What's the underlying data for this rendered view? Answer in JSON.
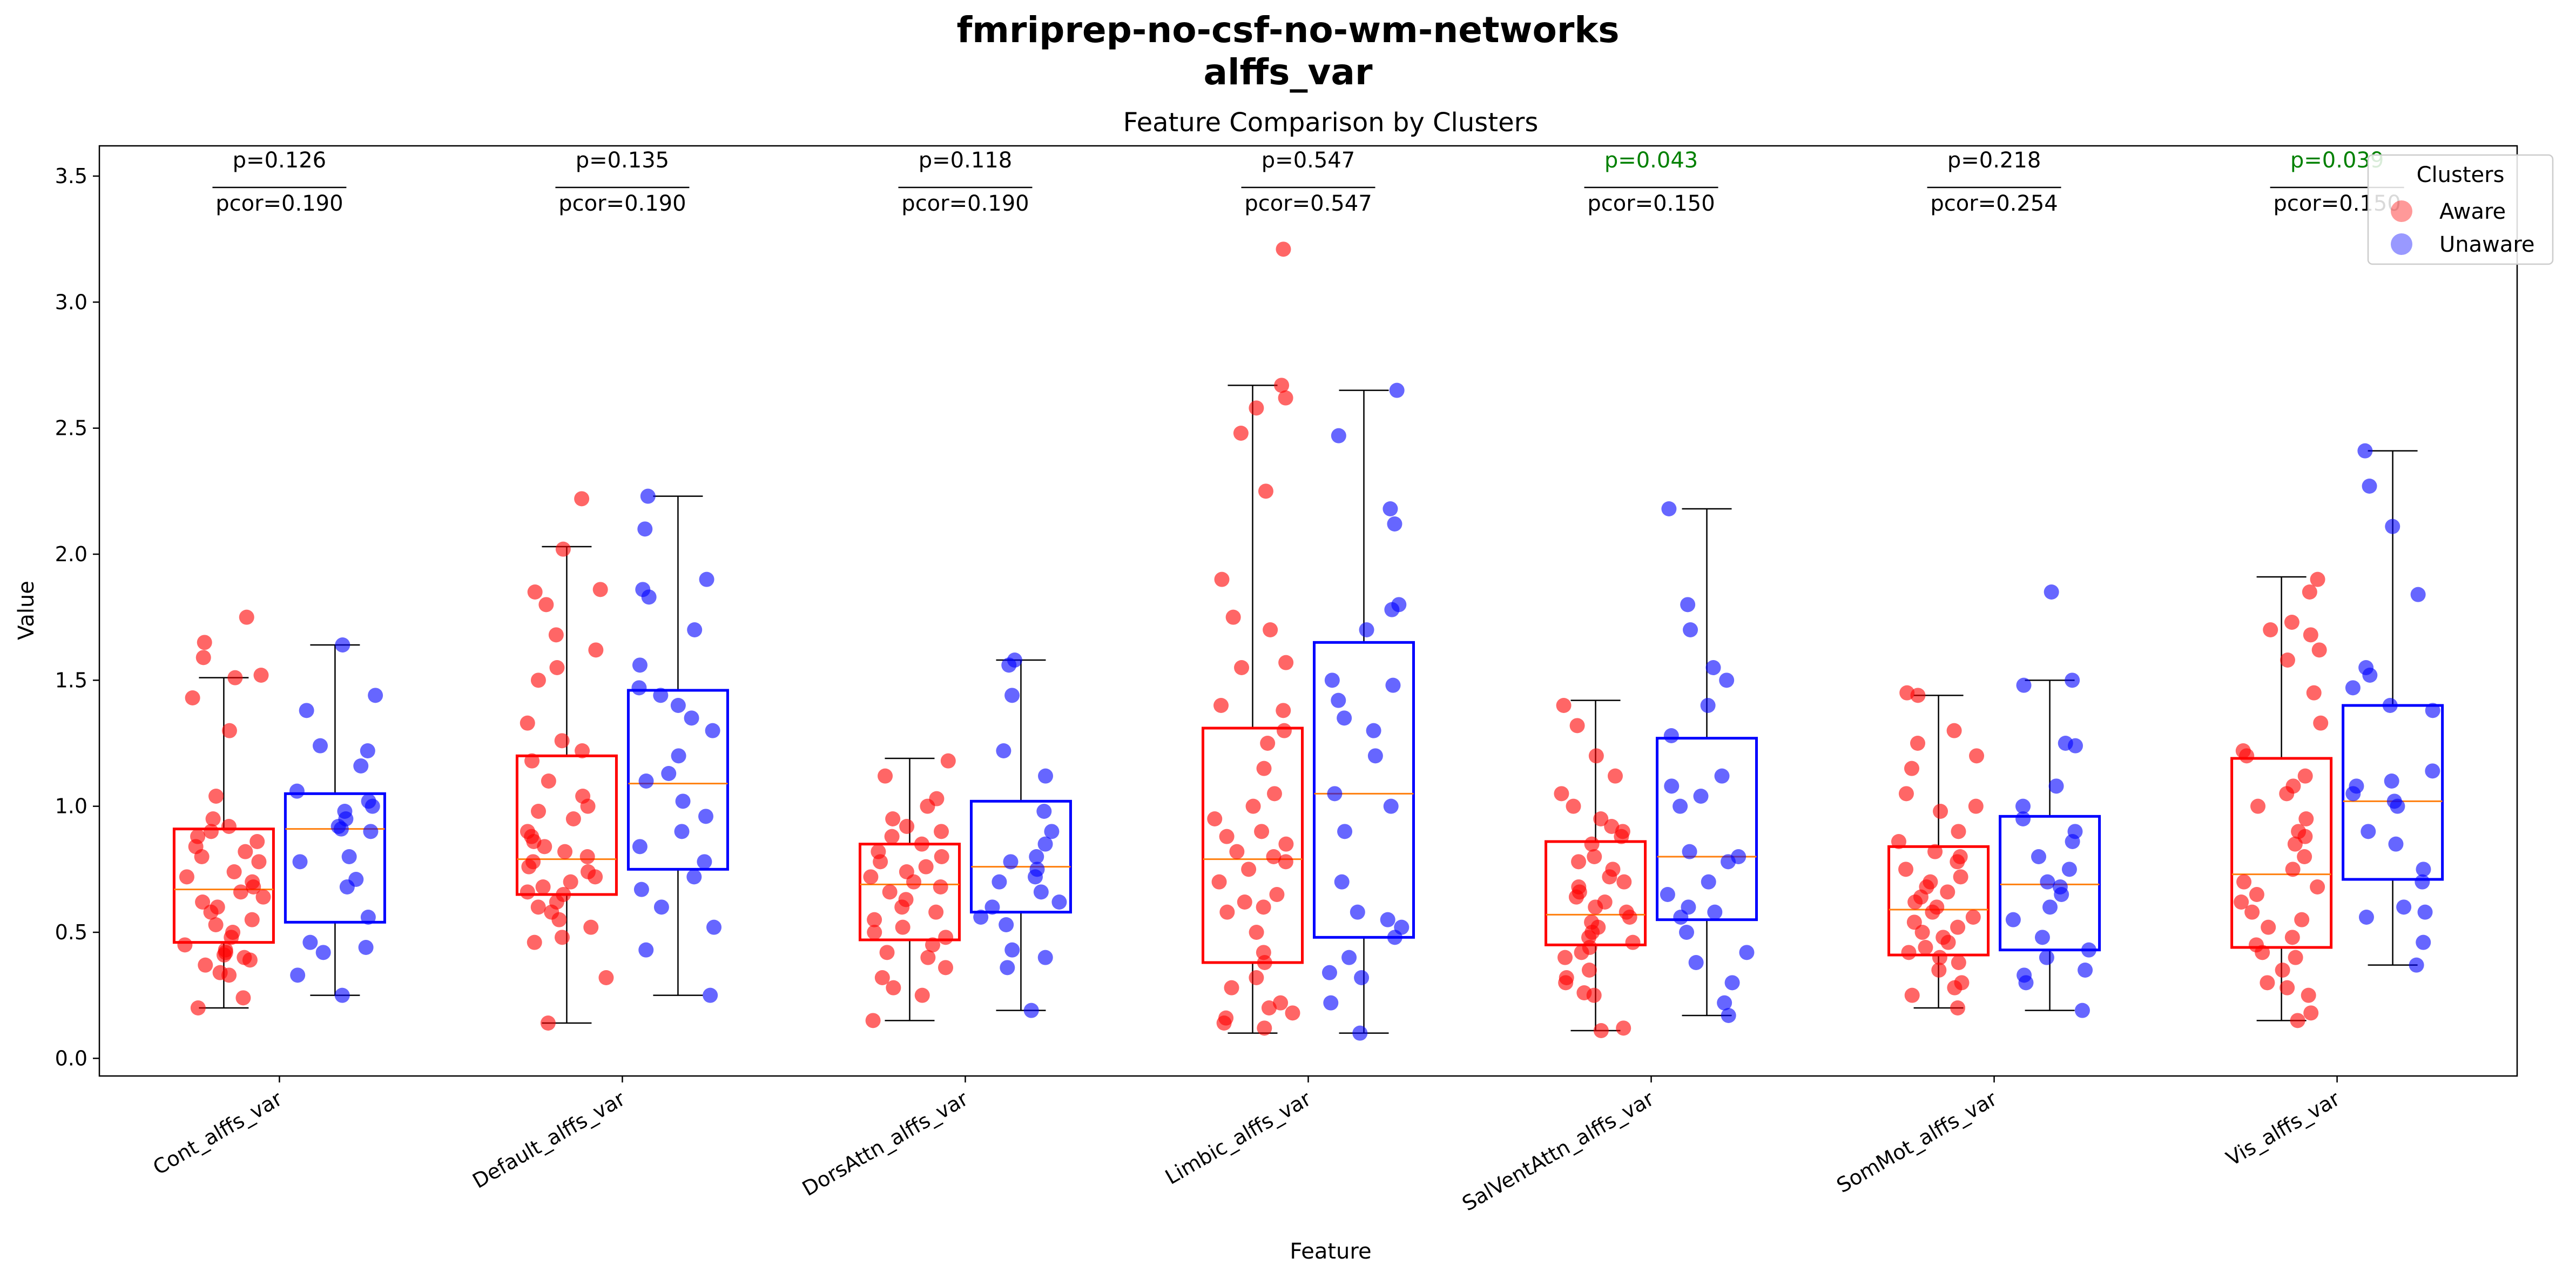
{
  "suptitle_line1": "fmriprep-no-csf-no-wm-networks",
  "suptitle_line2": "alffs_var",
  "chart_data": {
    "type": "box",
    "title": "Feature Comparison by Clusters",
    "xlabel": "Feature",
    "ylabel": "Value",
    "ylim": [
      -0.07,
      3.62
    ],
    "yticks": [
      "0.0",
      "0.5",
      "1.0",
      "1.5",
      "2.0",
      "2.5",
      "3.0",
      "3.5"
    ],
    "grid": false,
    "legend": {
      "title": "Clusters",
      "position": "top-right",
      "entries": [
        {
          "name": "Aware",
          "color": "#ff0000"
        },
        {
          "name": "Unaware",
          "color": "#0000ff"
        }
      ]
    },
    "significant_color": "#008000",
    "features": [
      {
        "name": "Cont_alffs_var",
        "p": "p=0.126",
        "pcor": "pcor=0.190",
        "significant": false,
        "aware": {
          "whislo": 0.2,
          "q1": 0.46,
          "med": 0.67,
          "q3": 0.91,
          "whishi": 1.51,
          "points": [
            0.2,
            0.24,
            0.33,
            0.34,
            0.37,
            0.39,
            0.4,
            0.41,
            0.42,
            0.43,
            0.45,
            0.48,
            0.5,
            0.53,
            0.55,
            0.58,
            0.6,
            0.62,
            0.64,
            0.66,
            0.68,
            0.7,
            0.72,
            0.74,
            0.78,
            0.8,
            0.82,
            0.84,
            0.86,
            0.88,
            0.9,
            0.92,
            0.95,
            1.04,
            1.3,
            1.43,
            1.51,
            1.52,
            1.59,
            1.65,
            1.75
          ]
        },
        "unaware": {
          "whislo": 0.25,
          "q1": 0.54,
          "med": 0.91,
          "q3": 1.05,
          "whishi": 1.64,
          "points": [
            0.25,
            0.33,
            0.42,
            0.44,
            0.46,
            0.56,
            0.68,
            0.71,
            0.78,
            0.8,
            0.9,
            0.91,
            0.92,
            0.95,
            0.98,
            1.0,
            1.02,
            1.06,
            1.16,
            1.22,
            1.24,
            1.38,
            1.44,
            1.64
          ]
        }
      },
      {
        "name": "Default_alffs_var",
        "p": "p=0.135",
        "pcor": "pcor=0.190",
        "significant": false,
        "aware": {
          "whislo": 0.14,
          "q1": 0.65,
          "med": 0.79,
          "q3": 1.2,
          "whishi": 2.03,
          "points": [
            0.14,
            0.32,
            0.46,
            0.48,
            0.52,
            0.55,
            0.58,
            0.6,
            0.62,
            0.65,
            0.66,
            0.68,
            0.7,
            0.72,
            0.74,
            0.76,
            0.78,
            0.8,
            0.82,
            0.84,
            0.86,
            0.88,
            0.9,
            0.95,
            0.98,
            1.0,
            1.04,
            1.1,
            1.18,
            1.22,
            1.26,
            1.33,
            1.5,
            1.55,
            1.62,
            1.68,
            1.8,
            1.85,
            1.86,
            2.02,
            2.22
          ]
        },
        "unaware": {
          "whislo": 0.25,
          "q1": 0.75,
          "med": 1.09,
          "q3": 1.46,
          "whishi": 2.23,
          "points": [
            0.25,
            0.43,
            0.52,
            0.6,
            0.67,
            0.72,
            0.78,
            0.84,
            0.9,
            0.96,
            1.02,
            1.1,
            1.13,
            1.2,
            1.3,
            1.35,
            1.4,
            1.44,
            1.47,
            1.56,
            1.7,
            1.83,
            1.86,
            1.9,
            2.1,
            2.23
          ]
        }
      },
      {
        "name": "DorsAttn_alffs_var",
        "p": "p=0.118",
        "pcor": "pcor=0.190",
        "significant": false,
        "aware": {
          "whislo": 0.15,
          "q1": 0.47,
          "med": 0.69,
          "q3": 0.85,
          "whishi": 1.19,
          "points": [
            0.15,
            0.25,
            0.28,
            0.32,
            0.36,
            0.4,
            0.42,
            0.45,
            0.48,
            0.5,
            0.52,
            0.55,
            0.58,
            0.6,
            0.63,
            0.66,
            0.68,
            0.7,
            0.72,
            0.74,
            0.76,
            0.78,
            0.8,
            0.82,
            0.85,
            0.88,
            0.9,
            0.92,
            0.95,
            1.0,
            1.03,
            1.12,
            1.18
          ]
        },
        "unaware": {
          "whislo": 0.19,
          "q1": 0.58,
          "med": 0.76,
          "q3": 1.02,
          "whishi": 1.58,
          "points": [
            0.19,
            0.36,
            0.4,
            0.43,
            0.53,
            0.56,
            0.6,
            0.62,
            0.66,
            0.7,
            0.72,
            0.75,
            0.78,
            0.8,
            0.85,
            0.9,
            0.98,
            1.12,
            1.22,
            1.44,
            1.56,
            1.58
          ]
        }
      },
      {
        "name": "Limbic_alffs_var",
        "p": "p=0.547",
        "pcor": "pcor=0.547",
        "significant": false,
        "aware": {
          "whislo": 0.1,
          "q1": 0.38,
          "med": 0.79,
          "q3": 1.31,
          "whishi": 2.67,
          "points": [
            0.12,
            0.14,
            0.16,
            0.18,
            0.2,
            0.22,
            0.28,
            0.32,
            0.38,
            0.42,
            0.5,
            0.58,
            0.6,
            0.62,
            0.65,
            0.7,
            0.75,
            0.78,
            0.8,
            0.82,
            0.85,
            0.88,
            0.9,
            0.95,
            1.0,
            1.05,
            1.15,
            1.25,
            1.3,
            1.38,
            1.4,
            1.55,
            1.57,
            1.7,
            1.75,
            1.9,
            2.25,
            2.48,
            2.58,
            2.62,
            2.67,
            3.21
          ]
        },
        "unaware": {
          "whislo": 0.1,
          "q1": 0.48,
          "med": 1.05,
          "q3": 1.65,
          "whishi": 2.65,
          "points": [
            0.1,
            0.22,
            0.32,
            0.34,
            0.4,
            0.48,
            0.52,
            0.55,
            0.58,
            0.7,
            0.9,
            1.0,
            1.05,
            1.2,
            1.3,
            1.35,
            1.42,
            1.48,
            1.5,
            1.7,
            1.78,
            1.8,
            2.12,
            2.18,
            2.47,
            2.65
          ]
        }
      },
      {
        "name": "SalVentAttn_alffs_var",
        "p": "p=0.043",
        "pcor": "pcor=0.150",
        "significant": true,
        "aware": {
          "whislo": 0.11,
          "q1": 0.45,
          "med": 0.57,
          "q3": 0.86,
          "whishi": 1.42,
          "points": [
            0.11,
            0.12,
            0.25,
            0.26,
            0.3,
            0.32,
            0.35,
            0.4,
            0.42,
            0.44,
            0.46,
            0.48,
            0.5,
            0.52,
            0.54,
            0.56,
            0.58,
            0.6,
            0.62,
            0.64,
            0.66,
            0.68,
            0.7,
            0.72,
            0.75,
            0.78,
            0.8,
            0.85,
            0.88,
            0.9,
            0.92,
            0.95,
            1.0,
            1.05,
            1.12,
            1.2,
            1.32,
            1.4
          ]
        },
        "unaware": {
          "whislo": 0.17,
          "q1": 0.55,
          "med": 0.8,
          "q3": 1.27,
          "whishi": 2.18,
          "points": [
            0.17,
            0.22,
            0.3,
            0.38,
            0.42,
            0.5,
            0.56,
            0.58,
            0.6,
            0.65,
            0.7,
            0.78,
            0.8,
            0.82,
            1.0,
            1.04,
            1.08,
            1.12,
            1.28,
            1.4,
            1.5,
            1.55,
            1.7,
            1.8,
            2.18
          ]
        }
      },
      {
        "name": "SomMot_alffs_var",
        "p": "p=0.218",
        "pcor": "pcor=0.254",
        "significant": false,
        "aware": {
          "whislo": 0.2,
          "q1": 0.41,
          "med": 0.59,
          "q3": 0.84,
          "whishi": 1.44,
          "points": [
            0.2,
            0.25,
            0.28,
            0.3,
            0.35,
            0.38,
            0.4,
            0.42,
            0.44,
            0.46,
            0.48,
            0.5,
            0.52,
            0.54,
            0.56,
            0.58,
            0.6,
            0.62,
            0.64,
            0.66,
            0.68,
            0.7,
            0.72,
            0.75,
            0.78,
            0.8,
            0.82,
            0.86,
            0.9,
            0.98,
            1.0,
            1.05,
            1.15,
            1.2,
            1.25,
            1.3,
            1.44,
            1.45
          ]
        },
        "unaware": {
          "whislo": 0.19,
          "q1": 0.43,
          "med": 0.69,
          "q3": 0.96,
          "whishi": 1.5,
          "points": [
            0.19,
            0.3,
            0.33,
            0.35,
            0.4,
            0.43,
            0.48,
            0.55,
            0.6,
            0.65,
            0.68,
            0.7,
            0.75,
            0.8,
            0.86,
            0.9,
            0.95,
            1.0,
            1.08,
            1.24,
            1.25,
            1.48,
            1.5,
            1.85
          ]
        }
      },
      {
        "name": "Vis_alffs_var",
        "p": "p=0.039",
        "pcor": "pcor=0.150",
        "significant": true,
        "aware": {
          "whislo": 0.15,
          "q1": 0.44,
          "med": 0.73,
          "q3": 1.19,
          "whishi": 1.91,
          "points": [
            0.15,
            0.18,
            0.25,
            0.28,
            0.3,
            0.35,
            0.4,
            0.42,
            0.45,
            0.48,
            0.52,
            0.55,
            0.58,
            0.62,
            0.65,
            0.68,
            0.7,
            0.75,
            0.8,
            0.85,
            0.88,
            0.9,
            0.95,
            1.0,
            1.05,
            1.08,
            1.12,
            1.2,
            1.22,
            1.33,
            1.45,
            1.58,
            1.62,
            1.68,
            1.7,
            1.73,
            1.85,
            1.9
          ]
        },
        "unaware": {
          "whislo": 0.37,
          "q1": 0.71,
          "med": 1.02,
          "q3": 1.4,
          "whishi": 2.41,
          "points": [
            0.37,
            0.46,
            0.56,
            0.58,
            0.6,
            0.7,
            0.75,
            0.85,
            0.9,
            1.0,
            1.02,
            1.05,
            1.08,
            1.1,
            1.14,
            1.38,
            1.4,
            1.47,
            1.52,
            1.55,
            1.84,
            2.11,
            2.27,
            2.41
          ]
        }
      }
    ]
  }
}
